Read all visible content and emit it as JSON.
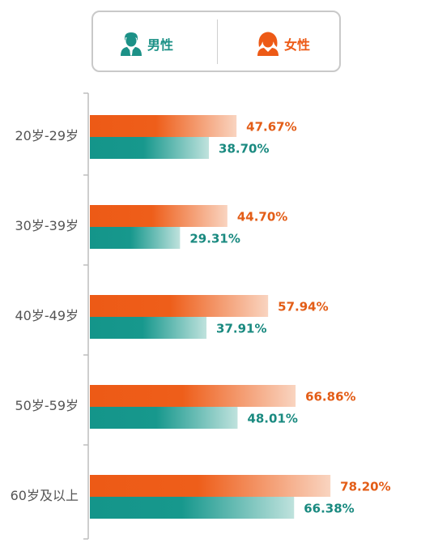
{
  "legend": {
    "male_label": "男性",
    "female_label": "女性",
    "male_icon": "male-user-icon",
    "female_icon": "female-user-icon"
  },
  "colors": {
    "female": "#ed5a16",
    "male": "#14958a",
    "female_value": "#e35d17",
    "male_value": "#1a8a80",
    "axis": "#bdbdbd",
    "category_text": "#555555"
  },
  "chart_data": {
    "type": "bar",
    "orientation": "horizontal",
    "categories": [
      "20岁-29岁",
      "30岁-39岁",
      "40岁-49岁",
      "50岁-59岁",
      "60岁及以上"
    ],
    "series": [
      {
        "name": "女性",
        "values": [
          47.67,
          44.7,
          57.94,
          66.86,
          78.2
        ]
      },
      {
        "name": "男性",
        "values": [
          38.7,
          29.31,
          37.91,
          48.01,
          66.38
        ]
      }
    ],
    "value_labels": [
      [
        "47.67%",
        "44.70%",
        "57.94%",
        "66.86%",
        "78.20%"
      ],
      [
        "38.70%",
        "29.31%",
        "37.91%",
        "48.01%",
        "66.38%"
      ]
    ],
    "xlim": [
      0,
      100
    ],
    "grid": false,
    "legend_position": "top"
  }
}
